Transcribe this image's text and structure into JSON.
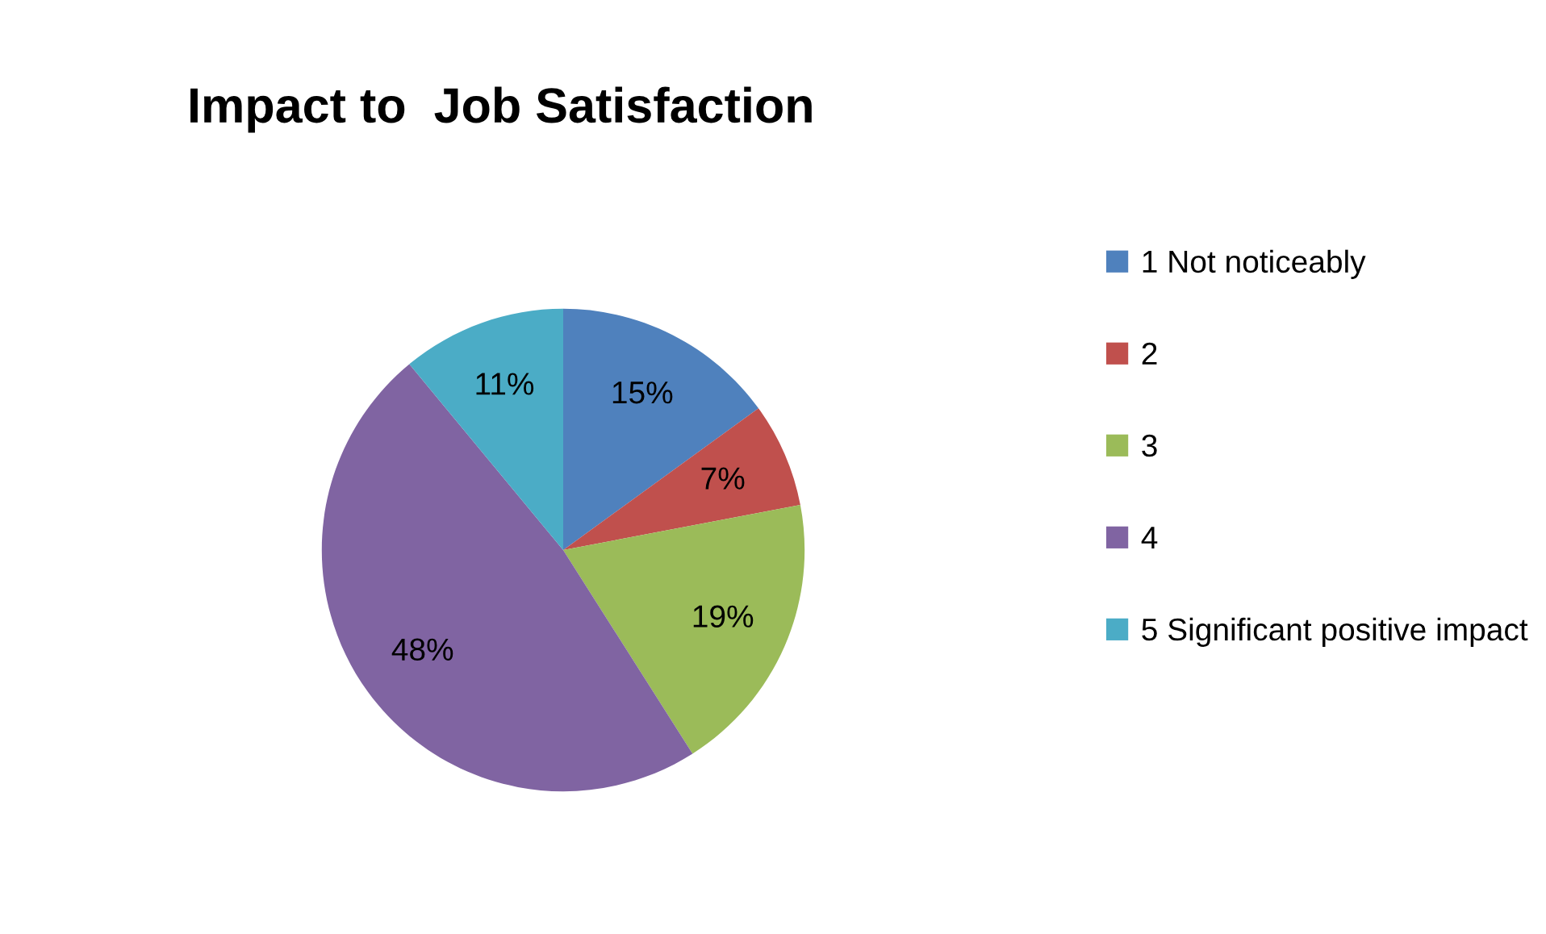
{
  "chart_data": {
    "type": "pie",
    "title": "Impact to  Job Satisfaction",
    "categories": [
      "1 Not noticeably",
      "2",
      "3",
      "4",
      "5 Significant positive impact"
    ],
    "values": [
      15,
      7,
      19,
      48,
      11
    ],
    "value_labels": [
      "15%",
      "7%",
      "19%",
      "48%",
      "11%"
    ],
    "colors": [
      "#4f81bd",
      "#c0504d",
      "#9bbb59",
      "#8064a2",
      "#4bacc6"
    ],
    "legend": "right"
  }
}
